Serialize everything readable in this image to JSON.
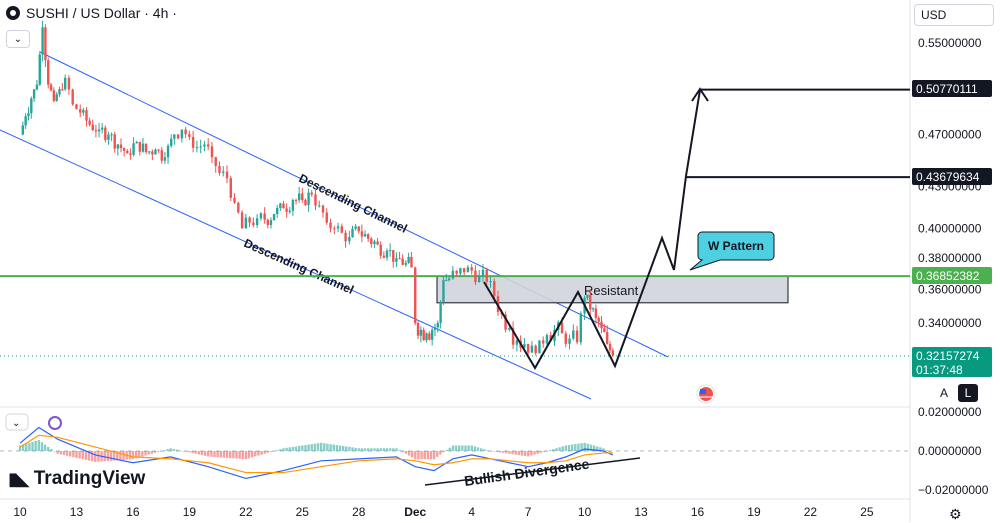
{
  "header": {
    "title": "SUSHI / US Dollar · 4h ·",
    "currency": "USD"
  },
  "controls": {
    "collapse_glyph": "⌄",
    "auto_scale": "A",
    "log_scale": "L",
    "settings_icon": "gear-icon"
  },
  "branding": {
    "logo_text": "TradingView",
    "logo_mark": "17"
  },
  "annotations": {
    "channel_upper": "Descending Channel",
    "channel_lower": "Descending Channel",
    "resistance_zone": "Resistant",
    "w_pattern": "W Pattern",
    "divergence": "Bullish Divergence"
  },
  "colors": {
    "up": "#26a69a",
    "down": "#ef5350",
    "channel": "#2962ff",
    "resistance_line": "#4caf50",
    "callout": "#4dd0e1",
    "macd_line": "#2962ff",
    "signal_line": "#ff9800",
    "current_price": "#089981"
  },
  "chart_data": [
    {
      "type": "candlestick",
      "title": "SUSHI / US Dollar · 4h",
      "x_tick_labels": [
        "10",
        "13",
        "16",
        "19",
        "22",
        "25",
        "28",
        "Dec",
        "4",
        "7",
        "10",
        "13",
        "16",
        "19",
        "22",
        "25"
      ],
      "y_tick_labels": [
        "0.55000000",
        "0.47000000",
        "0.43000000",
        "0.40000000",
        "0.38000000",
        "0.36000000",
        "0.34000000"
      ],
      "y_log_scale": true,
      "ylim": [
        0.3,
        0.57
      ],
      "price_markers": [
        {
          "value": "0.50770111",
          "style": "dark"
        },
        {
          "value": "0.43679634",
          "style": "dark"
        },
        {
          "value": "0.36852382",
          "style": "green"
        }
      ],
      "current_price": {
        "value": "0.32157274",
        "countdown": "01:37:48"
      },
      "resistance_level": 0.36852382,
      "resistance_zone": [
        0.352,
        0.3685
      ],
      "projection_targets": [
        0.50770111,
        0.43679634
      ],
      "close_series_day": [
        [
          10.0,
          0.47
        ],
        [
          10.3,
          0.485
        ],
        [
          10.6,
          0.5
        ],
        [
          10.9,
          0.512
        ],
        [
          11.2,
          0.565
        ],
        [
          11.5,
          0.512
        ],
        [
          11.8,
          0.498
        ],
        [
          12.1,
          0.508
        ],
        [
          12.4,
          0.518
        ],
        [
          12.8,
          0.495
        ],
        [
          13.2,
          0.488
        ],
        [
          13.7,
          0.478
        ],
        [
          14.2,
          0.474
        ],
        [
          14.7,
          0.47
        ],
        [
          15.2,
          0.462
        ],
        [
          15.7,
          0.455
        ],
        [
          16.2,
          0.464
        ],
        [
          16.7,
          0.456
        ],
        [
          17.2,
          0.458
        ],
        [
          17.7,
          0.452
        ],
        [
          18.2,
          0.47
        ],
        [
          18.6,
          0.474
        ],
        [
          19.0,
          0.468
        ],
        [
          19.4,
          0.46
        ],
        [
          19.8,
          0.462
        ],
        [
          20.2,
          0.452
        ],
        [
          20.6,
          0.44
        ],
        [
          21.0,
          0.436
        ],
        [
          21.4,
          0.418
        ],
        [
          21.8,
          0.4
        ],
        [
          22.2,
          0.404
        ],
        [
          22.6,
          0.407
        ],
        [
          23.0,
          0.406
        ],
        [
          23.5,
          0.41
        ],
        [
          24.0,
          0.414
        ],
        [
          24.5,
          0.42
        ],
        [
          25.0,
          0.42
        ],
        [
          25.5,
          0.424
        ],
        [
          25.9,
          0.416
        ],
        [
          26.3,
          0.404
        ],
        [
          26.7,
          0.4
        ],
        [
          27.1,
          0.397
        ],
        [
          27.5,
          0.394
        ],
        [
          28.0,
          0.398
        ],
        [
          28.5,
          0.393
        ],
        [
          29.0,
          0.389
        ],
        [
          29.5,
          0.385
        ],
        [
          30.0,
          0.38
        ],
        [
          30.5,
          0.377
        ],
        [
          30.8,
          0.374
        ],
        [
          31.0,
          0.34
        ],
        [
          31.3,
          0.336
        ],
        [
          31.6,
          0.334
        ],
        [
          31.9,
          0.336
        ],
        [
          32.2,
          0.34
        ],
        [
          32.5,
          0.366
        ],
        [
          32.8,
          0.367
        ],
        [
          33.2,
          0.37
        ],
        [
          33.6,
          0.371
        ],
        [
          34.0,
          0.372
        ],
        [
          34.4,
          0.369
        ],
        [
          34.8,
          0.365
        ],
        [
          35.2,
          0.356
        ],
        [
          35.6,
          0.345
        ],
        [
          36.0,
          0.337
        ],
        [
          36.4,
          0.33
        ],
        [
          36.8,
          0.328
        ],
        [
          37.2,
          0.327
        ],
        [
          37.6,
          0.33
        ],
        [
          38.0,
          0.333
        ],
        [
          38.4,
          0.336
        ],
        [
          38.8,
          0.334
        ],
        [
          39.2,
          0.331
        ],
        [
          39.6,
          0.329
        ],
        [
          40.0,
          0.355
        ],
        [
          40.3,
          0.348
        ],
        [
          40.6,
          0.343
        ],
        [
          40.9,
          0.337
        ],
        [
          41.2,
          0.328
        ],
        [
          41.5,
          0.3216
        ]
      ]
    },
    {
      "type": "line",
      "title": "MACD",
      "y_tick_labels": [
        "0.02000000",
        "0.00000000",
        "−0.02000000"
      ],
      "ylim": [
        -0.025,
        0.022
      ],
      "series": [
        {
          "color": "#2962ff",
          "values_day": [
            [
              10,
              0.004
            ],
            [
              11,
              0.012
            ],
            [
              12,
              0.006
            ],
            [
              14,
              -0.002
            ],
            [
              16,
              -0.006
            ],
            [
              18,
              -0.003
            ],
            [
              20,
              -0.008
            ],
            [
              22,
              -0.014
            ],
            [
              24,
              -0.01
            ],
            [
              26,
              -0.005
            ],
            [
              28,
              -0.004
            ],
            [
              30,
              -0.003
            ],
            [
              31,
              -0.008
            ],
            [
              32,
              -0.01
            ],
            [
              33,
              -0.004
            ],
            [
              34,
              -0.002
            ],
            [
              35,
              -0.004
            ],
            [
              36,
              -0.006
            ],
            [
              37,
              -0.008
            ],
            [
              38,
              -0.006
            ],
            [
              39,
              -0.003
            ],
            [
              40,
              0.001
            ],
            [
              41,
              0.0
            ],
            [
              41.5,
              -0.002
            ]
          ]
        },
        {
          "color": "#ff9800",
          "values_day": [
            [
              10,
              0.002
            ],
            [
              11,
              0.008
            ],
            [
              12,
              0.007
            ],
            [
              14,
              0.002
            ],
            [
              16,
              -0.003
            ],
            [
              18,
              -0.004
            ],
            [
              20,
              -0.006
            ],
            [
              22,
              -0.011
            ],
            [
              24,
              -0.011
            ],
            [
              26,
              -0.008
            ],
            [
              28,
              -0.005
            ],
            [
              30,
              -0.004
            ],
            [
              31,
              -0.005
            ],
            [
              32,
              -0.007
            ],
            [
              33,
              -0.006
            ],
            [
              34,
              -0.004
            ],
            [
              35,
              -0.004
            ],
            [
              36,
              -0.005
            ],
            [
              37,
              -0.006
            ],
            [
              38,
              -0.006
            ],
            [
              39,
              -0.005
            ],
            [
              40,
              -0.002
            ],
            [
              41,
              -0.001
            ],
            [
              41.5,
              -0.001
            ]
          ]
        }
      ]
    }
  ]
}
